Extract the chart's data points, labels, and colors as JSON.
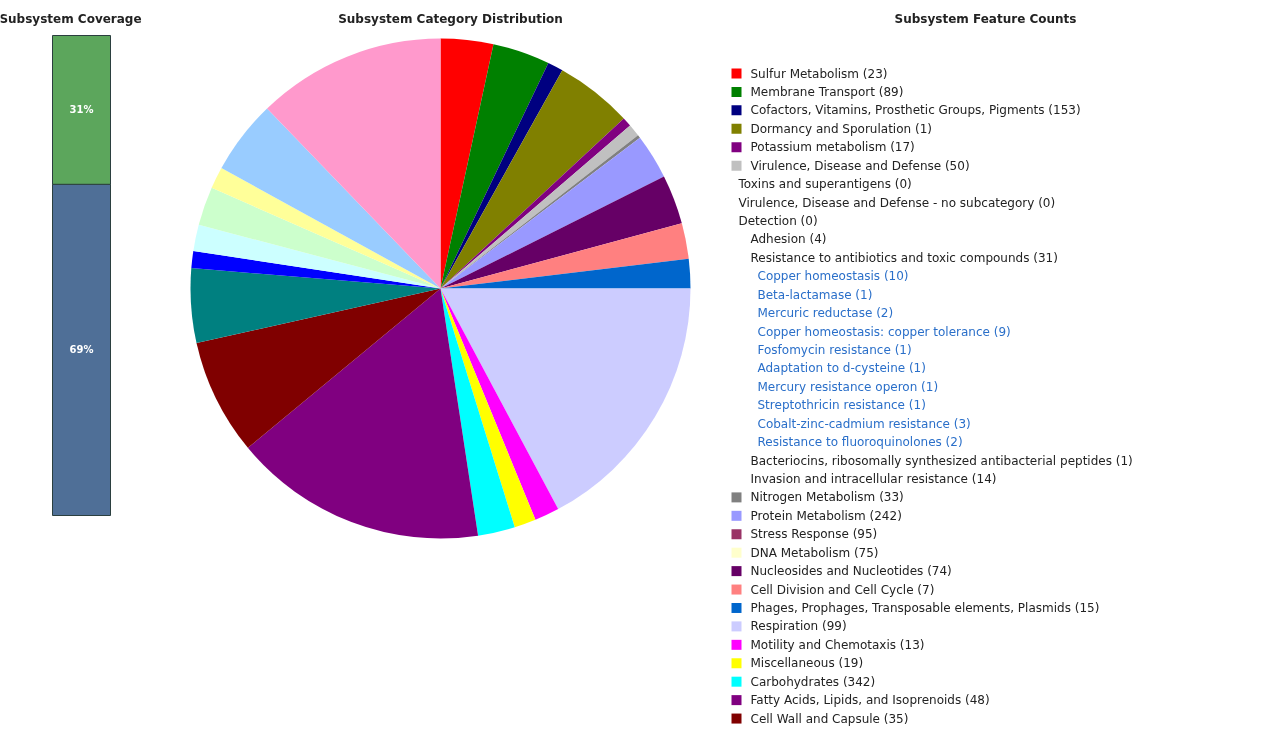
{
  "chart_data": [
    {
      "type": "bar",
      "title": "Subsystem Coverage",
      "categories": [
        null
      ],
      "stacked": true,
      "series": [
        {
          "color": "#4f6f97",
          "values": [
            69
          ],
          "value_labels": [
            "69%"
          ]
        },
        {
          "color": "#5ca65c",
          "values": [
            31
          ],
          "value_labels": [
            "31%"
          ]
        }
      ]
    },
    {
      "type": "pie",
      "title": "Subsystem Category Distribution",
      "legend_title": "Subsystem Feature Counts",
      "legend": "right",
      "categories": [
        "Sulfur Metabolism (23)",
        "Membrane Transport (89)",
        "Cofactors, Vitamins, Prosthetic Groups, Pigments (153)",
        "Dormancy and Sporulation (1)",
        "Potassium metabolism (17)",
        "Virulence, Disease and Defense (50)",
        "Nitrogen Metabolism (33)",
        "Protein Metabolism (242)",
        "Stress Response (95)",
        "DNA Metabolism (75)",
        "Nucleosides and Nucleotides (74)",
        "Cell Division and Cell Cycle (7)",
        "Phages, Prophages, Transposable elements, Plasmids (15)",
        "Respiration (99)",
        "Motility and Chemotaxis (13)",
        "Miscellaneous (19)",
        "Carbohydrates (342)",
        "Fatty Acids, Lipids, and Isoprenoids (48)",
        "Cell Wall and Capsule (35)",
        null,
        null,
        null,
        null,
        null,
        null,
        null
      ],
      "values": [
        3.4,
        3.7,
        1.0,
        5.0,
        0.6,
        0.8,
        0.2,
        2.9,
        0,
        0,
        3.2,
        2.3,
        1.9,
        17.2,
        1.6,
        1.4,
        2.4,
        16.4,
        7.5,
        4.8,
        1.1,
        1.7,
        2.5,
        1.4,
        4.8,
        12.2
      ],
      "colors": [
        "#ff0000",
        "#008000",
        "#000080",
        "#808000",
        "#800080",
        "#c0c0c0",
        "#808080",
        "#9999ff",
        "#993366",
        "#ffffcc",
        "#660066",
        "#ff8080",
        "#0066cc",
        "#ccccff",
        "#ff00ff",
        "#ffff00",
        "#00ffff",
        "#800080",
        "#800000",
        "#008080",
        "#0000ff",
        "#ccffff",
        "#ccffcc",
        "#ffff99",
        "#99ccff",
        "#ff99cc"
      ],
      "annotations": [
        "Toxins and superantigens (0)",
        "Virulence, Disease and Defense - no subcategory (0)",
        "Detection (0)",
        "Adhesion (4)",
        "Resistance to antibiotics and toxic compounds (31)",
        "Copper homeostasis (10)",
        "Beta-lactamase (1)",
        "Mercuric reductase (2)",
        "Copper homeostasis: copper tolerance (9)",
        "Fosfomycin resistance (1)",
        "Adaptation to d-cysteine (1)",
        "Mercury resistance operon (1)",
        "Streptothricin resistance (1)",
        "Cobalt-zinc-cadmium resistance (3)",
        "Resistance to fluoroquinolones (2)",
        "Bacteriocins, ribosomally synthesized antibacterial peptides (1)",
        "Invasion and intracellular resistance (14)"
      ]
    }
  ]
}
